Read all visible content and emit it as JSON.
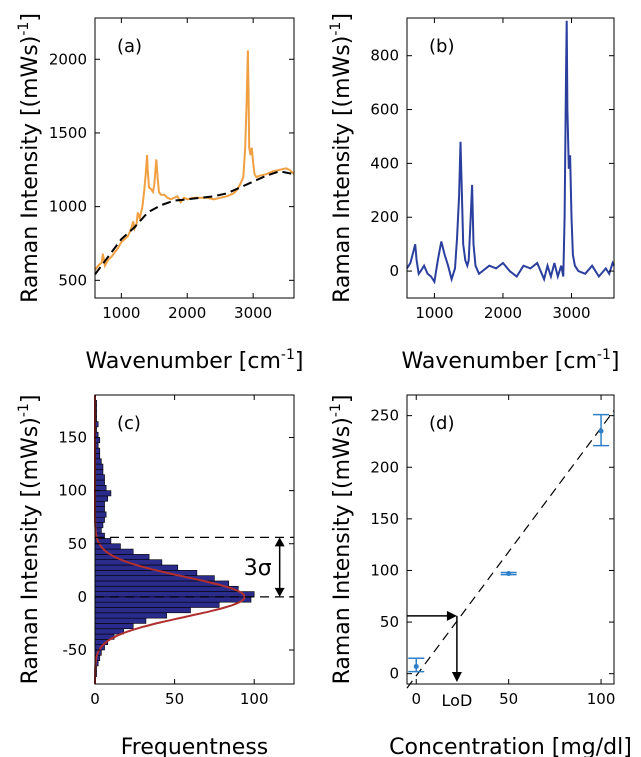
{
  "chart_data": [
    {
      "panel": "(a)",
      "type": "line",
      "xlabel": "Wavenumber [cm",
      "xlabel_sup": "-1",
      "xlabel_end": "]",
      "ylabel": "Raman Intensity [(mWs)",
      "ylabel_sup": "-1",
      "ylabel_end": "]",
      "xlim": [
        600,
        3620
      ],
      "ylim": [
        380,
        2280
      ],
      "xticks": [
        "1000",
        "2000",
        "3000"
      ],
      "yticks": [
        "500",
        "1000",
        "1500",
        "2000"
      ],
      "colors": {
        "spectrum": "#f0a040",
        "baseline": "#000000"
      },
      "series": [
        {
          "role": "spectrum",
          "x": [
            600,
            650,
            700,
            720,
            750,
            800,
            850,
            900,
            950,
            1000,
            1050,
            1100,
            1150,
            1180,
            1200,
            1230,
            1250,
            1280,
            1320,
            1350,
            1370,
            1390,
            1400,
            1420,
            1450,
            1480,
            1500,
            1530,
            1550,
            1570,
            1600,
            1650,
            1700,
            1750,
            1800,
            1850,
            1900,
            1950,
            2000,
            2100,
            2200,
            2300,
            2400,
            2500,
            2600,
            2700,
            2750,
            2800,
            2850,
            2880,
            2900,
            2920,
            2930,
            2940,
            2960,
            2980,
            3000,
            3020,
            3050,
            3100,
            3200,
            3300,
            3400,
            3500,
            3550,
            3600,
            3620
          ],
          "y": [
            570,
            600,
            620,
            680,
            600,
            640,
            660,
            690,
            720,
            760,
            780,
            800,
            850,
            900,
            850,
            880,
            960,
            920,
            1000,
            1120,
            1220,
            1350,
            1250,
            1130,
            1120,
            1100,
            1150,
            1320,
            1200,
            1100,
            1080,
            1080,
            1060,
            1050,
            1060,
            1070,
            1030,
            1060,
            1050,
            1060,
            1060,
            1060,
            1050,
            1060,
            1070,
            1090,
            1110,
            1150,
            1200,
            1400,
            1700,
            2060,
            1800,
            1400,
            1350,
            1400,
            1300,
            1220,
            1200,
            1210,
            1220,
            1240,
            1250,
            1260,
            1250,
            1230,
            1220
          ]
        },
        {
          "role": "baseline",
          "x": [
            600,
            800,
            1000,
            1200,
            1400,
            1600,
            1800,
            2000,
            2200,
            2400,
            2600,
            2800,
            3000,
            3200,
            3400,
            3620
          ],
          "y": [
            540,
            660,
            780,
            860,
            960,
            1010,
            1040,
            1050,
            1060,
            1070,
            1090,
            1130,
            1170,
            1210,
            1240,
            1220
          ]
        }
      ]
    },
    {
      "panel": "(b)",
      "type": "line",
      "xlabel": "Wavenumber [cm",
      "xlabel_sup": "-1",
      "xlabel_end": "]",
      "ylabel": "Raman Intensity [(mWs)",
      "ylabel_sup": "-1",
      "ylabel_end": "]",
      "xlim": [
        600,
        3620
      ],
      "ylim": [
        -100,
        940
      ],
      "xticks": [
        "1000",
        "2000",
        "3000"
      ],
      "yticks": [
        "0",
        "200",
        "400",
        "600",
        "800"
      ],
      "colors": {
        "spectrum": "#2b3f9e"
      },
      "series": [
        {
          "role": "spectrum",
          "x": [
            600,
            650,
            700,
            720,
            740,
            770,
            800,
            850,
            900,
            950,
            1000,
            1050,
            1100,
            1150,
            1200,
            1250,
            1300,
            1330,
            1360,
            1380,
            1400,
            1420,
            1450,
            1480,
            1500,
            1530,
            1550,
            1570,
            1600,
            1650,
            1700,
            1800,
            1900,
            2000,
            2100,
            2200,
            2300,
            2400,
            2500,
            2600,
            2650,
            2700,
            2750,
            2800,
            2850,
            2880,
            2900,
            2920,
            2930,
            2940,
            2960,
            2980,
            3000,
            3020,
            3050,
            3100,
            3200,
            3300,
            3400,
            3500,
            3550,
            3600,
            3620
          ],
          "y": [
            10,
            30,
            80,
            100,
            40,
            -10,
            0,
            20,
            -10,
            -20,
            -40,
            40,
            110,
            60,
            20,
            -30,
            10,
            120,
            280,
            480,
            300,
            100,
            40,
            20,
            40,
            200,
            320,
            100,
            20,
            -10,
            0,
            20,
            10,
            30,
            0,
            -20,
            20,
            10,
            30,
            -30,
            20,
            -20,
            30,
            -20,
            20,
            -20,
            200,
            720,
            930,
            600,
            380,
            430,
            200,
            60,
            20,
            0,
            -10,
            20,
            -20,
            10,
            -10,
            30,
            20
          ]
        }
      ]
    },
    {
      "panel": "(c)",
      "type": "bar",
      "orientation": "horizontal-histogram",
      "xlabel": "Frequentness",
      "ylabel": "Raman Intensity [(mWs)",
      "ylabel_sup": "-1",
      "ylabel_end": "]",
      "xlim": [
        0,
        125
      ],
      "ylim": [
        -82,
        190
      ],
      "xticks": [
        "0",
        "50",
        "100"
      ],
      "yticks": [
        "-50",
        "0",
        "50",
        "100",
        "150"
      ],
      "annotation": "3σ",
      "reference_lines": {
        "mean": 0,
        "three_sigma": 56
      },
      "colors": {
        "bars": "#2b2b8c",
        "fit": "#b03030"
      },
      "bin_width": 5,
      "bin_starts": [
        -75,
        -70,
        -65,
        -60,
        -55,
        -50,
        -45,
        -40,
        -35,
        -30,
        -25,
        -20,
        -15,
        -10,
        -5,
        0,
        5,
        10,
        15,
        20,
        25,
        30,
        35,
        40,
        45,
        50,
        55,
        60,
        65,
        70,
        75,
        80,
        85,
        90,
        95,
        100,
        105,
        110,
        115,
        120,
        125,
        130,
        135,
        140,
        145,
        150,
        155,
        160,
        165,
        170,
        175,
        180
      ],
      "counts": [
        1,
        1,
        2,
        3,
        4,
        6,
        8,
        12,
        18,
        24,
        32,
        45,
        60,
        78,
        98,
        100,
        90,
        84,
        75,
        64,
        52,
        42,
        34,
        24,
        16,
        10,
        6,
        4,
        5,
        6,
        7,
        6,
        6,
        8,
        10,
        7,
        6,
        6,
        5,
        5,
        4,
        3,
        3,
        2,
        3,
        2,
        1,
        2,
        1,
        1,
        1,
        1
      ],
      "fit": {
        "type": "gaussian",
        "peak": 94,
        "center": 0,
        "sigma": 18.7
      }
    },
    {
      "panel": "(d)",
      "type": "scatter",
      "xlabel": "Concentration [mg/dl]",
      "ylabel": "Raman Intensity [(mWs)",
      "ylabel_sup": "-1",
      "ylabel_end": "]",
      "xlim": [
        -5,
        107
      ],
      "ylim": [
        -10,
        270
      ],
      "xticks": [
        "0",
        "50",
        "100"
      ],
      "yticks": [
        "0",
        "50",
        "100",
        "150",
        "200",
        "250"
      ],
      "annotation": "LoD",
      "lod": {
        "x": 22,
        "y": 56
      },
      "fit_line": {
        "x": [
          -5,
          107
        ],
        "y": [
          -14,
          255
        ]
      },
      "colors": {
        "points": "#2f80c8",
        "fit": "#000000"
      },
      "points": [
        {
          "x": 0,
          "y": 7,
          "yerr_low": 2,
          "yerr_high": 15
        },
        {
          "x": 50,
          "y": 97,
          "yerr_low": 96,
          "yerr_high": 98
        },
        {
          "x": 100,
          "y": 235,
          "yerr_low": 221,
          "yerr_high": 251
        }
      ]
    }
  ]
}
